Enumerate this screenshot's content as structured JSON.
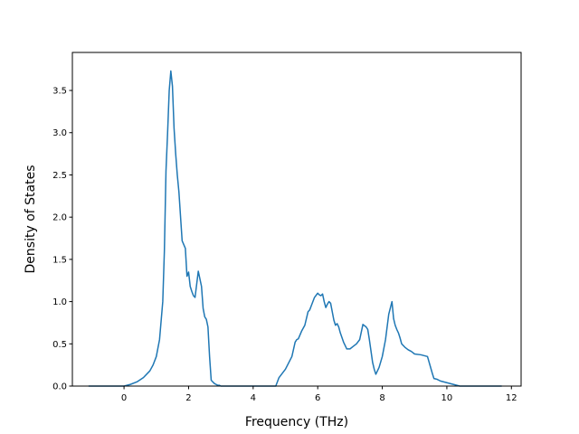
{
  "chart_data": {
    "type": "line",
    "title": "",
    "xlabel": "Frequency (THz)",
    "ylabel": "Density of States",
    "xlim": [
      -1.6,
      12.3
    ],
    "ylim": [
      0.0,
      3.95
    ],
    "xticks": [
      0,
      2,
      4,
      6,
      8,
      10,
      12
    ],
    "xtick_labels": [
      "0",
      "2",
      "4",
      "6",
      "8",
      "10",
      "12"
    ],
    "yticks": [
      0.0,
      0.5,
      1.0,
      1.5,
      2.0,
      2.5,
      3.0,
      3.5
    ],
    "ytick_labels": [
      "0.0",
      "0.5",
      "1.0",
      "1.5",
      "2.0",
      "2.5",
      "3.0",
      "3.5"
    ],
    "grid": false,
    "legend": "none",
    "line_color": "#1f77b4",
    "series": [
      {
        "x": [
          -1.1,
          -0.5,
          0.0,
          0.2,
          0.4,
          0.6,
          0.8,
          0.9,
          1.0,
          1.1,
          1.2,
          1.25,
          1.3,
          1.35,
          1.4,
          1.45,
          1.5,
          1.55,
          1.6,
          1.65,
          1.7,
          1.8,
          1.9,
          1.95,
          2.0,
          2.05,
          2.1,
          2.15,
          2.2,
          2.3,
          2.4,
          2.45,
          2.5,
          2.55,
          2.6,
          2.65,
          2.7,
          2.75,
          2.8,
          2.85,
          2.9,
          2.95,
          3.0,
          3.2,
          3.5,
          4.0,
          4.7,
          4.75,
          4.8,
          5.0,
          5.2,
          5.3,
          5.35,
          5.4,
          5.5,
          5.6,
          5.7,
          5.75,
          5.8,
          5.9,
          6.0,
          6.05,
          6.1,
          6.15,
          6.2,
          6.25,
          6.3,
          6.35,
          6.4,
          6.5,
          6.55,
          6.6,
          6.65,
          6.7,
          6.8,
          6.9,
          7.0,
          7.1,
          7.2,
          7.3,
          7.4,
          7.5,
          7.55,
          7.6,
          7.7,
          7.75,
          7.8,
          7.9,
          8.0,
          8.1,
          8.2,
          8.3,
          8.35,
          8.4,
          8.45,
          8.5,
          8.55,
          8.6,
          8.7,
          8.8,
          8.9,
          9.0,
          9.2,
          9.4,
          9.55,
          9.6,
          9.7,
          9.8,
          10.0,
          10.2,
          10.4,
          10.6,
          10.8,
          11.0,
          11.7
        ],
        "y": [
          0.0,
          0.0,
          0.0,
          0.02,
          0.05,
          0.1,
          0.18,
          0.25,
          0.35,
          0.55,
          1.0,
          1.6,
          2.55,
          3.0,
          3.5,
          3.73,
          3.55,
          3.05,
          2.75,
          2.5,
          2.3,
          1.72,
          1.63,
          1.3,
          1.35,
          1.18,
          1.12,
          1.07,
          1.05,
          1.36,
          1.18,
          0.92,
          0.82,
          0.79,
          0.7,
          0.35,
          0.07,
          0.05,
          0.03,
          0.02,
          0.01,
          0.01,
          0.0,
          0.0,
          0.0,
          0.0,
          0.0,
          0.05,
          0.1,
          0.2,
          0.35,
          0.52,
          0.55,
          0.56,
          0.65,
          0.72,
          0.88,
          0.9,
          0.95,
          1.05,
          1.1,
          1.08,
          1.07,
          1.09,
          1.0,
          0.93,
          0.97,
          1.0,
          0.98,
          0.78,
          0.72,
          0.74,
          0.7,
          0.63,
          0.52,
          0.44,
          0.44,
          0.47,
          0.5,
          0.55,
          0.73,
          0.7,
          0.67,
          0.55,
          0.28,
          0.2,
          0.14,
          0.22,
          0.35,
          0.55,
          0.85,
          1.0,
          0.8,
          0.72,
          0.67,
          0.63,
          0.57,
          0.5,
          0.46,
          0.43,
          0.41,
          0.38,
          0.37,
          0.35,
          0.15,
          0.09,
          0.08,
          0.06,
          0.04,
          0.02,
          0.0,
          0.0,
          0.0,
          0.0,
          0.0
        ]
      }
    ]
  }
}
